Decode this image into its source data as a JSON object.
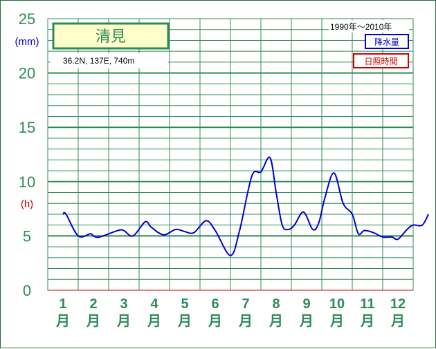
{
  "station": "清見",
  "location": "36.2N,  137E,  740m",
  "period": "1990年〜2010年",
  "legend": {
    "precip_label": "降水量",
    "sun_label": "日照時間"
  },
  "units": {
    "precip": "(mm)",
    "sun": "(h)"
  },
  "colors": {
    "precip": "#0000cc",
    "sun": "#cc0000",
    "grid": "#2e8b57",
    "label_text": "#2e8b57"
  },
  "chart_data": {
    "type": "line",
    "title": "清見",
    "ylim": [
      0,
      25
    ],
    "yticks": [
      "0",
      "5",
      "10",
      "15",
      "20",
      "25"
    ],
    "month_labels": [
      "1",
      "2",
      "3",
      "4",
      "5",
      "6",
      "7",
      "8",
      "9",
      "10",
      "11",
      "12"
    ],
    "month_suffix": "月",
    "grid": true,
    "series": [
      {
        "name": "降水量",
        "x": [
          0.5,
          0.6,
          1.0,
          1.4,
          1.5,
          1.7,
          2.3,
          2.5,
          2.8,
          3.2,
          3.4,
          3.8,
          4.2,
          4.5,
          4.8,
          5.2,
          5.5,
          6.0,
          6.3,
          6.7,
          7.0,
          7.3,
          7.5,
          7.7,
          7.9,
          8.1,
          8.4,
          8.7,
          8.9,
          9.1,
          9.4,
          9.7,
          10.0,
          10.2,
          10.4,
          10.7,
          11.0,
          11.3,
          11.5,
          11.8,
          12.0,
          12.3,
          12.5
        ],
        "y": [
          7.0,
          7.0,
          5.0,
          5.2,
          5.0,
          4.9,
          5.5,
          5.5,
          5.0,
          6.3,
          5.8,
          5.1,
          5.6,
          5.4,
          5.3,
          6.4,
          5.5,
          3.2,
          5.5,
          10.5,
          10.9,
          12.2,
          9.0,
          6.0,
          5.6,
          6.0,
          7.2,
          5.6,
          6.2,
          8.5,
          10.8,
          8.0,
          7.0,
          5.2,
          5.5,
          5.3,
          4.9,
          4.9,
          4.7,
          5.6,
          6.0,
          6.0,
          7.0
        ]
      }
    ]
  }
}
